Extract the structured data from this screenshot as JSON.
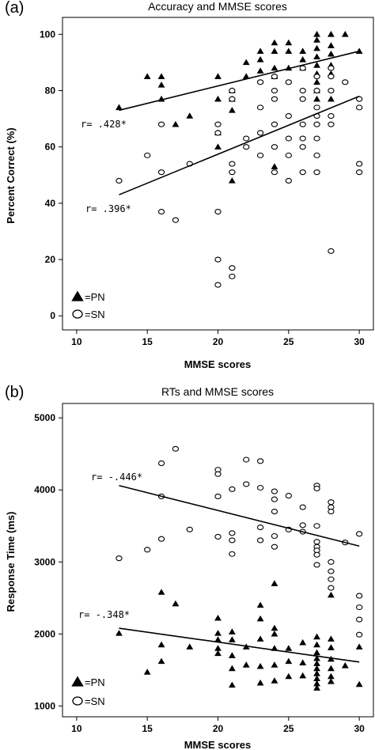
{
  "chart_data": [
    {
      "panel_label": "(a)",
      "type": "scatter",
      "title": "Accuracy and MMSE scores",
      "xlabel": "MMSE scores",
      "ylabel": "Percent Correct (%)",
      "xlim": [
        9,
        31
      ],
      "ylim": [
        -5,
        106
      ],
      "xticks": [
        10,
        15,
        20,
        25,
        30
      ],
      "yticks": [
        0,
        20,
        40,
        60,
        80,
        100
      ],
      "legend_position": "bottom-left",
      "series": [
        {
          "name": "PN",
          "marker": "triangle",
          "points": [
            [
              13,
              74
            ],
            [
              15,
              85
            ],
            [
              16,
              85
            ],
            [
              16,
              82
            ],
            [
              16,
              77
            ],
            [
              17,
              68
            ],
            [
              18,
              71
            ],
            [
              20,
              85
            ],
            [
              20,
              77
            ],
            [
              20,
              65
            ],
            [
              20,
              60
            ],
            [
              21,
              80
            ],
            [
              21,
              77
            ],
            [
              21,
              73
            ],
            [
              21,
              48
            ],
            [
              22,
              90
            ],
            [
              22,
              85
            ],
            [
              23,
              94
            ],
            [
              23,
              91
            ],
            [
              23,
              87
            ],
            [
              24,
              97
            ],
            [
              24,
              94
            ],
            [
              24,
              88
            ],
            [
              24,
              85
            ],
            [
              24,
              53
            ],
            [
              25,
              97
            ],
            [
              25,
              94
            ],
            [
              25,
              88
            ],
            [
              26,
              94
            ],
            [
              26,
              91
            ],
            [
              26,
              88
            ],
            [
              27,
              100
            ],
            [
              27,
              98
            ],
            [
              27,
              95
            ],
            [
              27,
              92
            ],
            [
              27,
              89
            ],
            [
              27,
              86
            ],
            [
              27,
              83
            ],
            [
              27,
              80
            ],
            [
              27,
              77
            ],
            [
              28,
              100
            ],
            [
              28,
              96
            ],
            [
              28,
              93
            ],
            [
              28,
              89
            ],
            [
              28,
              86
            ],
            [
              28,
              77
            ],
            [
              29,
              100
            ],
            [
              30,
              94
            ]
          ]
        },
        {
          "name": "SN",
          "marker": "circle",
          "points": [
            [
              13,
              48
            ],
            [
              15,
              57
            ],
            [
              16,
              68
            ],
            [
              16,
              51
            ],
            [
              16,
              37
            ],
            [
              17,
              34
            ],
            [
              18,
              54
            ],
            [
              20,
              68
            ],
            [
              20,
              65
            ],
            [
              20,
              37
            ],
            [
              20,
              20
            ],
            [
              20,
              11
            ],
            [
              21,
              80
            ],
            [
              21,
              77
            ],
            [
              21,
              54
            ],
            [
              21,
              51
            ],
            [
              21,
              17
            ],
            [
              21,
              14
            ],
            [
              22,
              63
            ],
            [
              22,
              60
            ],
            [
              23,
              83
            ],
            [
              23,
              74
            ],
            [
              23,
              65
            ],
            [
              23,
              57
            ],
            [
              24,
              85
            ],
            [
              24,
              80
            ],
            [
              24,
              77
            ],
            [
              24,
              68
            ],
            [
              24,
              60
            ],
            [
              24,
              51
            ],
            [
              25,
              83
            ],
            [
              25,
              71
            ],
            [
              25,
              63
            ],
            [
              25,
              57
            ],
            [
              25,
              48
            ],
            [
              26,
              88
            ],
            [
              26,
              80
            ],
            [
              26,
              77
            ],
            [
              26,
              68
            ],
            [
              26,
              63
            ],
            [
              26,
              60
            ],
            [
              26,
              51
            ],
            [
              27,
              85
            ],
            [
              27,
              80
            ],
            [
              27,
              74
            ],
            [
              27,
              71
            ],
            [
              27,
              68
            ],
            [
              27,
              63
            ],
            [
              27,
              57
            ],
            [
              27,
              51
            ],
            [
              28,
              88
            ],
            [
              28,
              85
            ],
            [
              28,
              80
            ],
            [
              28,
              71
            ],
            [
              28,
              68
            ],
            [
              28,
              23
            ],
            [
              29,
              83
            ],
            [
              30,
              77
            ],
            [
              30,
              74
            ],
            [
              30,
              54
            ],
            [
              30,
              51
            ]
          ]
        }
      ],
      "fits": [
        {
          "series": "PN",
          "x": [
            13,
            30
          ],
          "y": [
            73,
            94
          ],
          "label": "r= .428*"
        },
        {
          "series": "SN",
          "x": [
            13,
            30
          ],
          "y": [
            43,
            78
          ],
          "label": "r= .396*"
        }
      ],
      "legend": [
        {
          "marker": "triangle",
          "label": "=PN"
        },
        {
          "marker": "circle",
          "label": "=SN"
        }
      ]
    },
    {
      "panel_label": "(b)",
      "type": "scatter",
      "title": "RTs and MMSE scores",
      "xlabel": "MMSE scores",
      "ylabel": "Response Time (ms)",
      "xlim": [
        9,
        31
      ],
      "ylim": [
        850,
        5200
      ],
      "xticks": [
        10,
        15,
        20,
        25,
        30
      ],
      "yticks": [
        1000,
        2000,
        3000,
        4000,
        5000
      ],
      "legend_position": "bottom-left",
      "series": [
        {
          "name": "PN",
          "marker": "triangle",
          "points": [
            [
              13,
              2010
            ],
            [
              15,
              1470
            ],
            [
              16,
              2580
            ],
            [
              16,
              1850
            ],
            [
              16,
              1620
            ],
            [
              17,
              2420
            ],
            [
              18,
              1820
            ],
            [
              20,
              2220
            ],
            [
              20,
              2010
            ],
            [
              20,
              1920
            ],
            [
              20,
              1800
            ],
            [
              20,
              1730
            ],
            [
              21,
              2030
            ],
            [
              21,
              1920
            ],
            [
              21,
              1700
            ],
            [
              21,
              1520
            ],
            [
              21,
              1290
            ],
            [
              22,
              1820
            ],
            [
              22,
              1570
            ],
            [
              23,
              2400
            ],
            [
              23,
              2210
            ],
            [
              23,
              1930
            ],
            [
              23,
              1550
            ],
            [
              23,
              1320
            ],
            [
              24,
              2700
            ],
            [
              24,
              2080
            ],
            [
              24,
              2000
            ],
            [
              24,
              1800
            ],
            [
              24,
              1570
            ],
            [
              24,
              1350
            ],
            [
              25,
              1800
            ],
            [
              25,
              1620
            ],
            [
              25,
              1410
            ],
            [
              26,
              1880
            ],
            [
              26,
              1600
            ],
            [
              26,
              1420
            ],
            [
              27,
              1960
            ],
            [
              27,
              1850
            ],
            [
              27,
              1740
            ],
            [
              27,
              1660
            ],
            [
              27,
              1590
            ],
            [
              27,
              1520
            ],
            [
              27,
              1450
            ],
            [
              27,
              1380
            ],
            [
              27,
              1310
            ],
            [
              27,
              1250
            ],
            [
              28,
              2540
            ],
            [
              28,
              1930
            ],
            [
              28,
              1810
            ],
            [
              28,
              1650
            ],
            [
              28,
              1520
            ],
            [
              28,
              1410
            ],
            [
              28,
              1340
            ],
            [
              29,
              1560
            ],
            [
              30,
              1820
            ],
            [
              30,
              1300
            ]
          ]
        },
        {
          "name": "SN",
          "marker": "circle",
          "points": [
            [
              13,
              3050
            ],
            [
              15,
              3170
            ],
            [
              16,
              4370
            ],
            [
              16,
              3910
            ],
            [
              16,
              3320
            ],
            [
              17,
              4570
            ],
            [
              18,
              3450
            ],
            [
              20,
              4280
            ],
            [
              20,
              4220
            ],
            [
              20,
              3910
            ],
            [
              20,
              3350
            ],
            [
              21,
              4010
            ],
            [
              21,
              3400
            ],
            [
              21,
              3300
            ],
            [
              21,
              3110
            ],
            [
              22,
              4420
            ],
            [
              22,
              4080
            ],
            [
              23,
              4400
            ],
            [
              23,
              4030
            ],
            [
              23,
              3480
            ],
            [
              23,
              3300
            ],
            [
              24,
              3980
            ],
            [
              24,
              3870
            ],
            [
              24,
              3700
            ],
            [
              24,
              3360
            ],
            [
              24,
              3210
            ],
            [
              25,
              3920
            ],
            [
              25,
              3450
            ],
            [
              26,
              3760
            ],
            [
              26,
              3510
            ],
            [
              26,
              3420
            ],
            [
              27,
              4060
            ],
            [
              27,
              4020
            ],
            [
              27,
              3500
            ],
            [
              27,
              3280
            ],
            [
              27,
              3210
            ],
            [
              27,
              3160
            ],
            [
              27,
              3100
            ],
            [
              27,
              2960
            ],
            [
              28,
              3830
            ],
            [
              28,
              3760
            ],
            [
              28,
              3700
            ],
            [
              28,
              3000
            ],
            [
              28,
              2870
            ],
            [
              28,
              2760
            ],
            [
              28,
              2640
            ],
            [
              29,
              3270
            ],
            [
              30,
              3390
            ],
            [
              30,
              2530
            ],
            [
              30,
              2370
            ],
            [
              30,
              2200
            ],
            [
              30,
              1990
            ]
          ]
        }
      ],
      "fits": [
        {
          "series": "SN",
          "x": [
            13,
            30
          ],
          "y": [
            4060,
            3220
          ],
          "label": "r= -.446*"
        },
        {
          "series": "PN",
          "x": [
            13,
            30
          ],
          "y": [
            2080,
            1610
          ],
          "label": "r= -.348*"
        }
      ],
      "legend": [
        {
          "marker": "triangle",
          "label": "=PN"
        },
        {
          "marker": "circle",
          "label": "=SN"
        }
      ]
    }
  ]
}
